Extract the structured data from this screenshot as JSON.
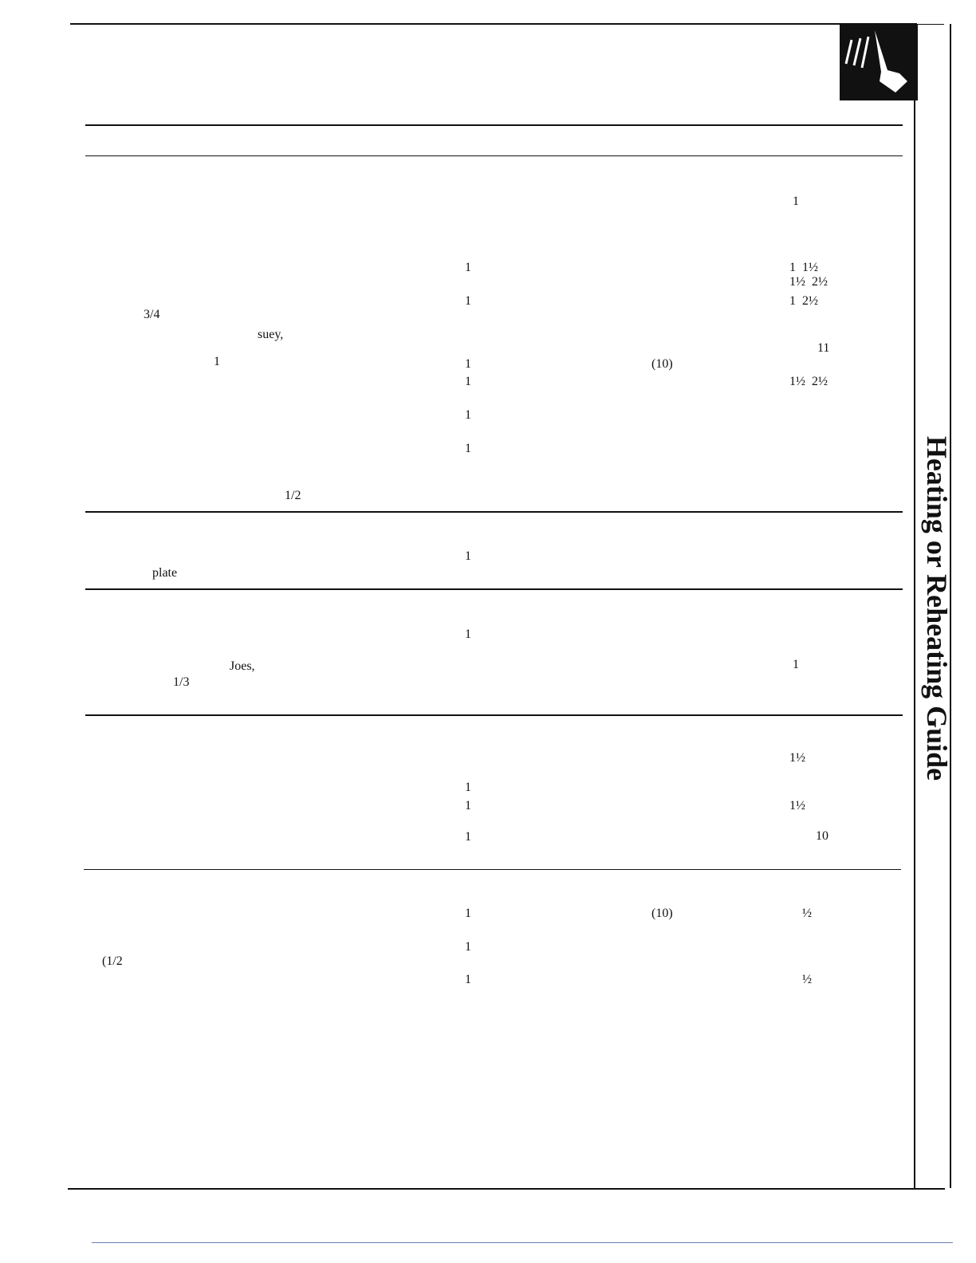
{
  "side_title": "Heating or Reheating Guide",
  "fragments": [
    "1",
    "1",
    "1  1½",
    "1½  2½",
    "1",
    "1  2½",
    "3/4",
    "suey,",
    "11",
    "1",
    "1",
    "(10)",
    "1",
    "1½  2½",
    "1",
    "1",
    "1/2",
    "1",
    "plate",
    "1",
    "Joes,",
    "1",
    "1/3",
    "1½",
    "1",
    "1",
    "1½",
    "1",
    "10",
    "1",
    "(10)",
    "½",
    "1",
    "(1/2",
    "1",
    "½"
  ]
}
